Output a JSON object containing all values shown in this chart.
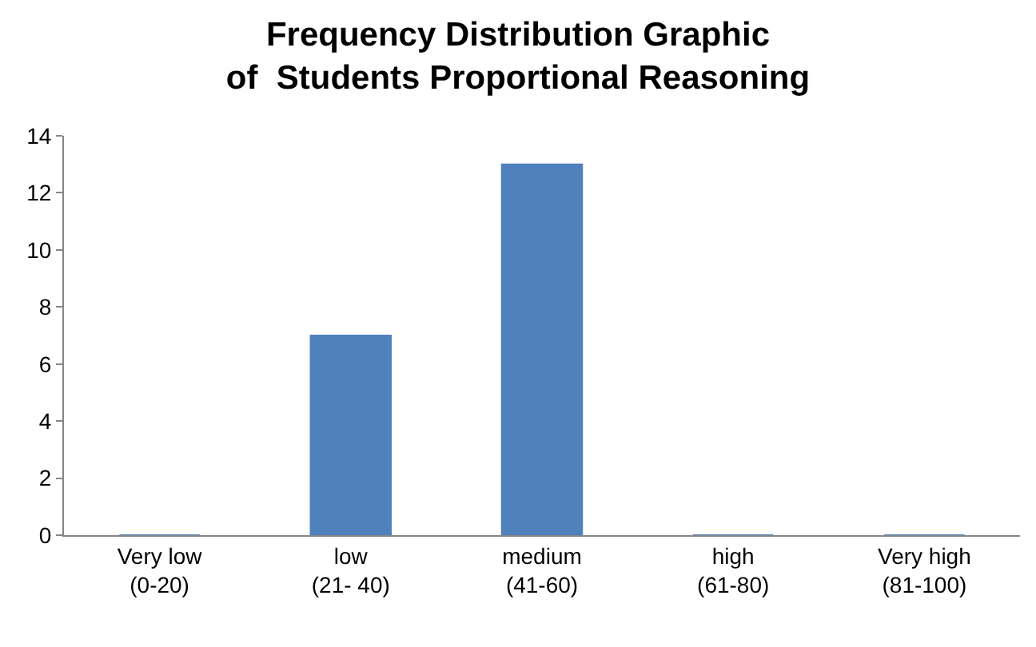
{
  "chart_data": {
    "type": "bar",
    "title": "Frequency Distribution Graphic\nof  Students Proportional Reasoning",
    "categories": [
      "Very low\n(0-20)",
      "low\n(21- 40)",
      "medium\n(41-60)",
      "high\n(61-80)",
      "Very high\n(81-100)"
    ],
    "values": [
      0,
      7,
      13,
      0,
      0
    ],
    "color": "#4f81bd",
    "ylim": [
      0,
      14
    ],
    "yticks": [
      0,
      2,
      4,
      6,
      8,
      10,
      12,
      14
    ]
  }
}
